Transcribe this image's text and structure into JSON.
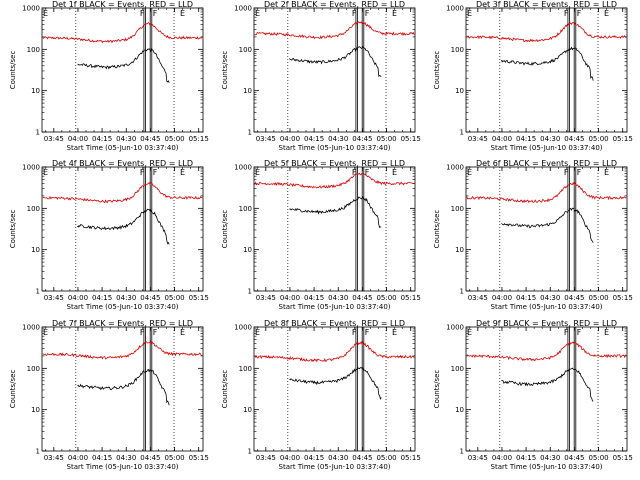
{
  "chart_data": {
    "type": "line",
    "yscale": "log",
    "ylim": [
      1,
      1000
    ],
    "ylabel": "Counts/sec",
    "xlabel": "Start Time (05-Jun-10 03:37:40)",
    "x_ticks": [
      "03:45",
      "04:00",
      "04:15",
      "04:30",
      "04:45",
      "05:00",
      "05:15"
    ],
    "y_ticks": [
      "1",
      "10",
      "100",
      "1000"
    ],
    "xlim_minutes_after_start": [
      0,
      100
    ],
    "tick_minutes_after_start": [
      7.33,
      22.33,
      37.33,
      52.33,
      67.33,
      82.33,
      97.33
    ],
    "markers": {
      "flare_start_label": "F",
      "flare_end_label": "F",
      "eclipse_label": "E",
      "dotted_lines_minutes": [
        21.0,
        82.0
      ],
      "double_lines_minutes": [
        [
          63.3,
          64.3
        ],
        [
          67.2,
          68.2
        ]
      ]
    },
    "series_colors": {
      "events": "#000000",
      "lld": "#dd0000"
    },
    "panels": [
      {
        "title": "Det 1f BLACK = Events, RED = LLD",
        "events_level": 45,
        "events_peak": 100,
        "lld_level": 190,
        "lld_peak": 420
      },
      {
        "title": "Det 2f BLACK = Events, RED = LLD",
        "events_level": 60,
        "events_peak": 110,
        "lld_level": 240,
        "lld_peak": 460
      },
      {
        "title": "Det 3f BLACK = Events, RED = LLD",
        "events_level": 55,
        "events_peak": 105,
        "lld_level": 200,
        "lld_peak": 440
      },
      {
        "title": "Det 4f BLACK = Events, RED = LLD",
        "events_level": 40,
        "events_peak": 90,
        "lld_level": 180,
        "lld_peak": 400
      },
      {
        "title": "Det 5f BLACK = Events, RED = LLD",
        "events_level": 100,
        "events_peak": 180,
        "lld_level": 400,
        "lld_peak": 700
      },
      {
        "title": "Det 6f BLACK = Events, RED = LLD",
        "events_level": 45,
        "events_peak": 95,
        "lld_level": 180,
        "lld_peak": 400
      },
      {
        "title": "Det 7f BLACK = Events, RED = LLD",
        "events_level": 40,
        "events_peak": 90,
        "lld_level": 220,
        "lld_peak": 440
      },
      {
        "title": "Det 8f BLACK = Events, RED = LLD",
        "events_level": 55,
        "events_peak": 100,
        "lld_level": 190,
        "lld_peak": 420
      },
      {
        "title": "Det 9f BLACK = Events, RED = LLD",
        "events_level": 50,
        "events_peak": 95,
        "lld_level": 200,
        "lld_peak": 420
      }
    ]
  }
}
